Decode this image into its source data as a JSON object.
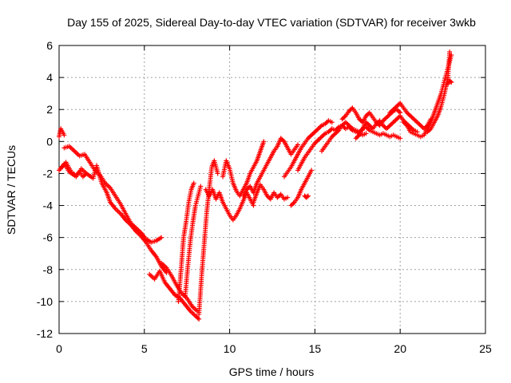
{
  "chart_data": {
    "type": "scatter",
    "title": "Day 155 of 2025, Sidereal Day-to-day VTEC variation (SDTVAR) for receiver 3wkb",
    "xlabel": "GPS time / hours",
    "ylabel": "SDTVAR / TECUs",
    "xlim": [
      0,
      25
    ],
    "ylim": [
      -12,
      6
    ],
    "x_ticks": [
      "0",
      "5",
      "10",
      "15",
      "20",
      "25"
    ],
    "y_ticks": [
      "-12",
      "-10",
      "-8",
      "-6",
      "-4",
      "-2",
      "0",
      "2",
      "4",
      "6"
    ],
    "grid": true,
    "marker": "plus",
    "color": "#ff0000",
    "series": [
      {
        "x": [
          0.0,
          0.1,
          0.2,
          0.3
        ],
        "y": [
          0.3,
          0.8,
          0.6,
          0.4
        ]
      },
      {
        "x": [
          0.0,
          0.3,
          0.6,
          1.0,
          1.3,
          1.6,
          2.0,
          2.2,
          2.5,
          2.8,
          3.0,
          3.3,
          3.6,
          3.9,
          4.2,
          4.5,
          4.8,
          5.1,
          5.4,
          5.7,
          6.0,
          6.3
        ],
        "y": [
          -1.8,
          -1.4,
          -1.9,
          -2.2,
          -1.7,
          -2.0,
          -2.3,
          -1.5,
          -2.6,
          -3.2,
          -3.8,
          -4.2,
          -4.5,
          -4.9,
          -5.2,
          -5.6,
          -5.9,
          -6.3,
          -6.8,
          -7.2,
          -7.8,
          -8.2
        ]
      },
      {
        "x": [
          0.3,
          0.6,
          0.9,
          1.2,
          1.5,
          1.8,
          2.1,
          2.4,
          2.7,
          3.0,
          3.3,
          3.6,
          3.9,
          4.2,
          4.5,
          4.8,
          5.1,
          5.4,
          5.7,
          6.0
        ],
        "y": [
          -0.4,
          -0.3,
          -0.6,
          -0.9,
          -0.8,
          -1.3,
          -1.8,
          -2.1,
          -2.6,
          -2.9,
          -3.4,
          -3.9,
          -4.5,
          -5.1,
          -5.4,
          -5.7,
          -6.1,
          -6.3,
          -6.2,
          -6.0
        ]
      },
      {
        "x": [
          0.2,
          0.4,
          0.6,
          0.8,
          1.0,
          1.2,
          1.4,
          1.6
        ],
        "y": [
          -1.6,
          -1.3,
          -1.7,
          -2.0,
          -2.1,
          -1.9,
          -2.2,
          -2.0
        ]
      },
      {
        "x": [
          5.3,
          5.6,
          5.9,
          6.2,
          6.5,
          6.8,
          7.1,
          7.4,
          7.7,
          8.0,
          8.2
        ],
        "y": [
          -8.3,
          -8.6,
          -8.1,
          -8.8,
          -9.2,
          -9.6,
          -9.8,
          -10.2,
          -10.6,
          -10.9,
          -11.1
        ]
      },
      {
        "x": [
          6.0,
          6.3,
          6.6,
          6.9,
          7.2,
          7.5,
          7.8,
          8.1
        ],
        "y": [
          -7.6,
          -7.9,
          -8.4,
          -9.0,
          -9.5,
          -9.8,
          -10.3,
          -10.6
        ]
      },
      {
        "x": [
          7.0,
          7.15,
          7.3,
          7.45,
          7.6,
          7.75,
          7.9
        ],
        "y": [
          -10.0,
          -8.0,
          -6.0,
          -5.0,
          -3.8,
          -3.0,
          -2.6
        ]
      },
      {
        "x": [
          7.4,
          7.55,
          7.7,
          7.85,
          8.0,
          8.15,
          8.3
        ],
        "y": [
          -9.6,
          -7.8,
          -6.2,
          -5.0,
          -4.0,
          -3.4,
          -2.8
        ]
      },
      {
        "x": [
          8.2,
          8.35,
          8.5,
          8.65,
          8.8,
          8.95,
          9.1,
          9.3
        ],
        "y": [
          -10.8,
          -8.5,
          -6.5,
          -4.5,
          -3.0,
          -1.6,
          -1.2,
          -2.0
        ]
      },
      {
        "x": [
          8.6,
          8.8,
          9.0,
          9.2,
          9.4,
          9.6,
          9.8,
          10.0,
          10.2,
          10.4,
          10.6,
          10.8,
          11.0,
          11.2,
          11.4
        ],
        "y": [
          -3.0,
          -3.4,
          -3.0,
          -3.6,
          -3.2,
          -3.8,
          -4.2,
          -4.6,
          -4.9,
          -4.6,
          -4.2,
          -3.7,
          -3.2,
          -3.6,
          -4.0
        ]
      },
      {
        "x": [
          9.6,
          9.8,
          10.0,
          10.2,
          10.4,
          10.6,
          10.8,
          11.0,
          11.2,
          11.4,
          11.6,
          11.8,
          12.0
        ],
        "y": [
          -2.2,
          -1.2,
          -1.7,
          -2.6,
          -3.1,
          -3.4,
          -3.0,
          -2.6,
          -2.0,
          -1.6,
          -1.2,
          -0.6,
          0.0
        ]
      },
      {
        "x": [
          10.8,
          11.0,
          11.2,
          11.4,
          11.6,
          11.8,
          12.0,
          12.2,
          12.4,
          12.6,
          12.8,
          13.0,
          13.2,
          13.4,
          13.6,
          13.8,
          14.0
        ],
        "y": [
          -3.4,
          -3.0,
          -2.8,
          -3.2,
          -2.6,
          -2.2,
          -1.8,
          -1.4,
          -1.0,
          -0.6,
          -0.3,
          0.2,
          0.0,
          -0.4,
          -0.8,
          -0.5,
          -0.2
        ]
      },
      {
        "x": [
          11.4,
          11.6,
          11.8,
          12.0,
          12.2,
          12.4,
          12.6,
          12.8,
          13.0,
          13.2,
          13.4
        ],
        "y": [
          -3.8,
          -3.2,
          -2.7,
          -3.0,
          -3.4,
          -3.6,
          -3.2,
          -3.5,
          -3.3,
          -3.6,
          -3.5
        ]
      },
      {
        "x": [
          13.2,
          13.4,
          13.6,
          13.8,
          14.0,
          14.2,
          14.4,
          14.6,
          14.8,
          15.0,
          15.2,
          15.4,
          15.6,
          15.8,
          16.0
        ],
        "y": [
          -2.2,
          -1.9,
          -1.6,
          -1.2,
          -0.8,
          -0.4,
          -0.1,
          0.2,
          0.4,
          0.6,
          0.8,
          1.0,
          1.1,
          1.3,
          1.2
        ]
      },
      {
        "x": [
          14.0,
          14.2,
          14.4,
          14.6,
          14.8,
          15.0,
          15.2,
          15.4,
          15.6,
          15.8,
          16.0,
          16.2,
          16.4,
          16.6,
          16.8,
          17.0,
          17.2,
          17.4,
          17.6,
          17.8,
          18.0
        ],
        "y": [
          -1.8,
          -1.4,
          -1.0,
          -0.7,
          -0.4,
          -0.1,
          0.1,
          0.3,
          0.5,
          0.6,
          0.8,
          0.7,
          0.9,
          1.0,
          0.8,
          0.9,
          0.7,
          0.6,
          0.5,
          0.4,
          0.5
        ]
      },
      {
        "x": [
          13.6,
          13.8,
          14.0,
          14.2,
          14.4,
          14.6,
          14.8
        ],
        "y": [
          -4.0,
          -3.8,
          -3.5,
          -3.0,
          -2.6,
          -2.2,
          -1.8
        ]
      },
      {
        "x": [
          14.4,
          14.5,
          14.6
        ],
        "y": [
          -3.4,
          -3.5,
          -3.4
        ]
      },
      {
        "x": [
          15.4,
          15.6,
          15.8,
          16.0,
          16.2,
          16.4,
          16.6,
          16.8,
          17.0,
          17.2,
          17.4,
          17.6,
          17.8,
          18.0,
          18.2,
          18.4,
          18.6,
          18.8,
          19.0,
          19.2,
          19.4,
          19.6,
          19.8,
          20.0
        ],
        "y": [
          -0.6,
          -0.3,
          0.0,
          0.3,
          0.5,
          0.7,
          1.0,
          1.2,
          1.0,
          0.8,
          0.7,
          0.6,
          0.8,
          0.9,
          0.7,
          0.6,
          0.5,
          0.4,
          0.5,
          0.4,
          0.3,
          0.4,
          0.3,
          0.2
        ]
      },
      {
        "x": [
          16.6,
          16.8,
          17.0,
          17.2,
          17.4,
          17.6,
          17.8,
          18.0,
          18.2,
          18.4,
          18.6,
          18.8,
          19.0,
          19.2,
          19.4,
          19.6,
          19.8,
          20.0
        ],
        "y": [
          1.4,
          1.6,
          1.9,
          2.1,
          1.8,
          1.4,
          1.2,
          1.6,
          1.8,
          1.5,
          1.2,
          1.0,
          1.3,
          1.5,
          1.7,
          1.9,
          2.0,
          1.8
        ]
      },
      {
        "x": [
          17.4,
          17.6,
          17.8,
          18.0,
          18.2,
          18.4,
          18.6,
          18.8,
          19.0,
          19.2,
          19.4,
          19.6,
          19.8,
          20.0,
          20.2,
          20.4,
          20.6,
          20.8,
          21.0
        ],
        "y": [
          0.2,
          0.4,
          0.8,
          1.2,
          1.0,
          0.8,
          1.1,
          1.3,
          1.0,
          0.8,
          1.0,
          1.2,
          1.4,
          1.6,
          1.3,
          1.1,
          0.9,
          0.7,
          0.6
        ]
      },
      {
        "x": [
          19.4,
          19.6,
          19.8,
          20.0,
          20.2,
          20.4,
          20.6,
          20.8,
          21.0,
          21.2,
          21.4,
          21.6,
          21.8
        ],
        "y": [
          1.8,
          2.0,
          2.2,
          2.4,
          2.1,
          1.8,
          1.6,
          1.4,
          1.2,
          1.0,
          0.8,
          1.0,
          1.4
        ]
      },
      {
        "x": [
          20.2,
          20.4,
          20.6,
          20.8,
          21.0,
          21.2,
          21.4,
          21.6,
          21.8,
          22.0,
          22.2,
          22.4,
          22.6,
          22.8,
          23.0
        ],
        "y": [
          1.2,
          1.0,
          0.6,
          0.5,
          0.4,
          0.3,
          0.4,
          0.8,
          1.2,
          1.8,
          2.4,
          3.0,
          3.8,
          4.6,
          5.4
        ]
      },
      {
        "x": [
          21.6,
          21.8,
          22.0,
          22.2,
          22.4,
          22.6,
          22.8,
          22.9
        ],
        "y": [
          0.6,
          0.8,
          1.2,
          1.6,
          2.2,
          3.0,
          4.0,
          5.6
        ]
      },
      {
        "x": [
          22.8,
          22.9,
          23.0
        ],
        "y": [
          3.6,
          3.8,
          3.7
        ]
      }
    ]
  }
}
